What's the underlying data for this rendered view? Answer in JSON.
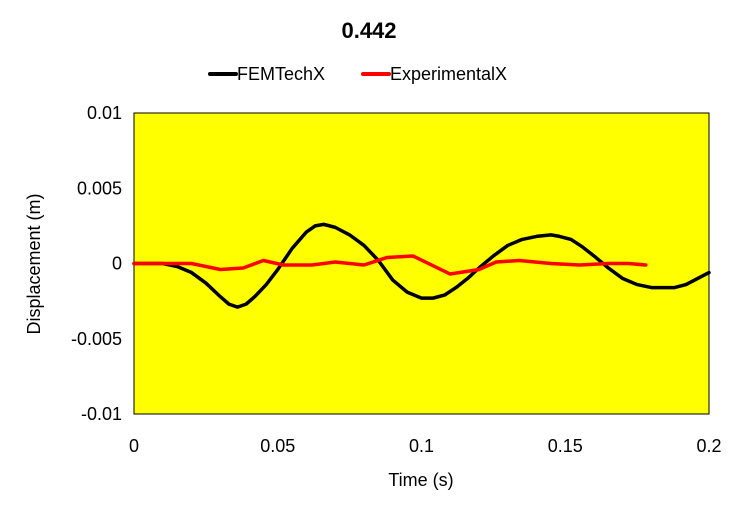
{
  "chart_data": {
    "type": "line",
    "title": "0.442",
    "xlabel": "Time (s)",
    "ylabel": "Displacement (m)",
    "xlim": [
      0,
      0.2
    ],
    "ylim": [
      -0.01,
      0.01
    ],
    "x_ticks": [
      "0",
      "0.05",
      "0.1",
      "0.15",
      "0.2"
    ],
    "x_tick_values": [
      0,
      0.05,
      0.1,
      0.15,
      0.2
    ],
    "y_ticks": [
      "0.01",
      "0.005",
      "0",
      "-0.005",
      "-0.01"
    ],
    "y_tick_values": [
      0.01,
      0.005,
      0,
      -0.005,
      -0.01
    ],
    "grid": false,
    "legend_position": "top",
    "plot_background": "#FFFF00",
    "series": [
      {
        "name": "FEMTechX",
        "color": "#000000",
        "x": [
          0,
          0.01,
          0.015,
          0.02,
          0.025,
          0.03,
          0.033,
          0.036,
          0.039,
          0.042,
          0.046,
          0.05,
          0.055,
          0.06,
          0.063,
          0.066,
          0.07,
          0.075,
          0.08,
          0.085,
          0.09,
          0.095,
          0.1,
          0.104,
          0.108,
          0.112,
          0.116,
          0.12,
          0.125,
          0.13,
          0.135,
          0.14,
          0.145,
          0.148,
          0.152,
          0.156,
          0.16,
          0.165,
          0.17,
          0.175,
          0.18,
          0.184,
          0.188,
          0.192,
          0.196,
          0.2
        ],
        "y": [
          0,
          0,
          -0.0002,
          -0.0006,
          -0.0013,
          -0.0022,
          -0.0027,
          -0.0029,
          -0.0027,
          -0.0022,
          -0.0014,
          -0.0004,
          0.001,
          0.0021,
          0.0025,
          0.0026,
          0.0024,
          0.0019,
          0.0012,
          0.0002,
          -0.0011,
          -0.0019,
          -0.0023,
          -0.0023,
          -0.0021,
          -0.0016,
          -0.001,
          -0.0003,
          0.0005,
          0.0012,
          0.0016,
          0.0018,
          0.0019,
          0.0018,
          0.0016,
          0.0011,
          0.0005,
          -0.0003,
          -0.001,
          -0.0014,
          -0.0016,
          -0.0016,
          -0.0016,
          -0.0014,
          -0.001,
          -0.0006
        ]
      },
      {
        "name": "ExperimentalX",
        "color": "#FF0000",
        "x": [
          0,
          0.01,
          0.02,
          0.03,
          0.038,
          0.045,
          0.052,
          0.062,
          0.07,
          0.08,
          0.088,
          0.097,
          0.11,
          0.12,
          0.126,
          0.134,
          0.145,
          0.155,
          0.165,
          0.172,
          0.178
        ],
        "y": [
          0,
          0,
          0,
          -0.0004,
          -0.0003,
          0.0002,
          -0.0001,
          -0.0001,
          0.0001,
          -0.0001,
          0.0004,
          0.0005,
          -0.0007,
          -0.0004,
          0.0001,
          0.0002,
          0,
          -0.0001,
          0,
          0,
          -0.0001
        ]
      }
    ]
  }
}
